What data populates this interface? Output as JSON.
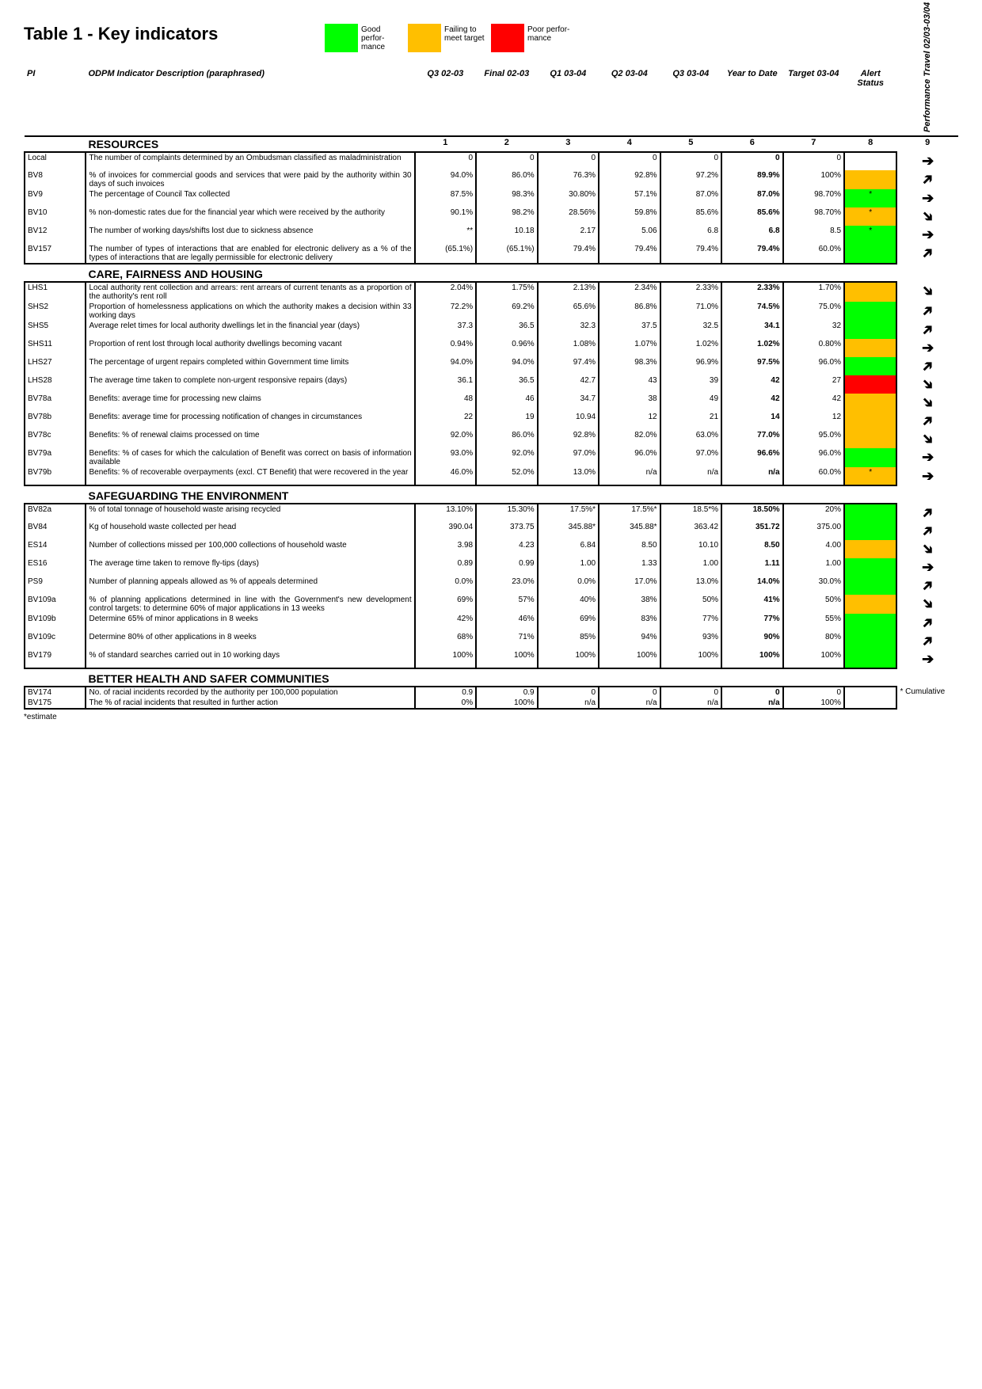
{
  "title": "Table 1 - Key indicators",
  "legend": [
    {
      "color": "#00ff00",
      "label": "Good perfor-mance"
    },
    {
      "color": "#ffbf00",
      "label": "Failing to meet target"
    },
    {
      "color": "#ff0000",
      "label": "Poor perfor-mance"
    }
  ],
  "colors": {
    "good": "#00ff00",
    "warn": "#ffbf00",
    "poor": "#ff0000"
  },
  "trend_glyph": "➔",
  "columns": {
    "pi": "PI",
    "desc": "ODPM Indicator Description (paraphrased)",
    "q3_0203": "Q3 02-03",
    "final_0203": "Final 02-03",
    "q1_0304": "Q1 03-04",
    "q2_0304": "Q2 03-04",
    "q3_0304": "Q3 03-04",
    "ytd": "Year to Date",
    "target": "Target 03-04",
    "alert": "Alert Status",
    "trend": "Performance Travel 02/03-03/04"
  },
  "nums": [
    "1",
    "2",
    "3",
    "4",
    "5",
    "6",
    "7",
    "8",
    "9"
  ],
  "cumulative_note": "* Cumulative",
  "estimate_note": "*estimate",
  "sections": [
    {
      "name": "RESOURCES",
      "rows": [
        {
          "pi": "Local",
          "desc": "The number of complaints determined by an Ombudsman classified as maladministration",
          "v": [
            "0",
            "0",
            "0",
            "0",
            "0",
            "0",
            "0"
          ],
          "alert": "",
          "trend": "r"
        },
        {
          "pi": "BV8",
          "desc": "% of invoices for commercial goods and services that were paid by the authority within 30 days of such invoices",
          "v": [
            "94.0%",
            "86.0%",
            "76.3%",
            "92.8%",
            "97.2%",
            "89.9%",
            "100%"
          ],
          "alert": "warn",
          "trend": "ur"
        },
        {
          "pi": "BV9",
          "desc": "The percentage of Council Tax collected",
          "v": [
            "87.5%",
            "98.3%",
            "30.80%",
            "57.1%",
            "87.0%",
            "87.0%",
            "98.70%"
          ],
          "alert": "good",
          "alert_star": true,
          "trend": "r"
        },
        {
          "pi": "BV10",
          "desc": "% non-domestic rates due for the financial year which were received by the authority",
          "v": [
            "90.1%",
            "98.2%",
            "28.56%",
            "59.8%",
            "85.6%",
            "85.6%",
            "98.70%"
          ],
          "alert": "warn",
          "alert_star": true,
          "trend": "dr"
        },
        {
          "pi": "BV12",
          "desc": "The number of working days/shifts lost due to sickness absence",
          "v": [
            "**",
            "10.18",
            "2.17",
            "5.06",
            "6.8",
            "6.8",
            "8.5"
          ],
          "alert": "good",
          "alert_star": true,
          "trend": "r"
        },
        {
          "pi": "BV157",
          "desc": "The number of types of interactions that are enabled for electronic delivery as a % of the types of interactions that are legally permissible for electronic delivery",
          "v": [
            "(65.1%)",
            "(65.1%)",
            "79.4%",
            "79.4%",
            "79.4%",
            "79.4%",
            "60.0%"
          ],
          "alert": "good",
          "trend": "ur"
        }
      ]
    },
    {
      "name": "CARE, FAIRNESS AND HOUSING",
      "rows": [
        {
          "pi": "LHS1",
          "desc": "Local authority rent collection and arrears: rent arrears of current tenants as a proportion of the authority's rent roll",
          "v": [
            "2.04%",
            "1.75%",
            "2.13%",
            "2.34%",
            "2.33%",
            "2.33%",
            "1.70%"
          ],
          "alert": "warn",
          "trend": "dr"
        },
        {
          "pi": "SHS2",
          "desc": "Proportion of homelessness applications on which the authority makes a decision within 33 working days",
          "v": [
            "72.2%",
            "69.2%",
            "65.6%",
            "86.8%",
            "71.0%",
            "74.5%",
            "75.0%"
          ],
          "alert": "good",
          "trend": "ur"
        },
        {
          "pi": "SHS5",
          "desc": "Average relet times for local authority dwellings let in the financial year (days)",
          "v": [
            "37.3",
            "36.5",
            "32.3",
            "37.5",
            "32.5",
            "34.1",
            "32"
          ],
          "alert": "good",
          "trend": "ur"
        },
        {
          "pi": "SHS11",
          "desc": "Proportion of rent lost through local authority dwellings becoming vacant",
          "v": [
            "0.94%",
            "0.96%",
            "1.08%",
            "1.07%",
            "1.02%",
            "1.02%",
            "0.80%"
          ],
          "alert": "warn",
          "trend": "r"
        },
        {
          "pi": "LHS27",
          "desc": "The percentage of urgent repairs completed within Government time limits",
          "v": [
            "94.0%",
            "94.0%",
            "97.4%",
            "98.3%",
            "96.9%",
            "97.5%",
            "96.0%"
          ],
          "alert": "good",
          "trend": "ur"
        },
        {
          "pi": "LHS28",
          "desc": "The average time taken to complete non-urgent responsive repairs (days)",
          "v": [
            "36.1",
            "36.5",
            "42.7",
            "43",
            "39",
            "42",
            "27"
          ],
          "alert": "poor",
          "trend": "dr"
        },
        {
          "pi": "BV78a",
          "desc": "Benefits: average time for processing new claims",
          "v": [
            "48",
            "46",
            "34.7",
            "38",
            "49",
            "42",
            "42"
          ],
          "alert": "warn",
          "trend": "dr"
        },
        {
          "pi": "BV78b",
          "desc": "Benefits: average time for processing notification of changes in circumstances",
          "v": [
            "22",
            "19",
            "10.94",
            "12",
            "21",
            "14",
            "12"
          ],
          "alert": "warn",
          "trend": "ur"
        },
        {
          "pi": "BV78c",
          "desc": "Benefits: % of renewal claims processed on time",
          "v": [
            "92.0%",
            "86.0%",
            "92.8%",
            "82.0%",
            "63.0%",
            "77.0%",
            "95.0%"
          ],
          "alert": "warn",
          "trend": "dr"
        },
        {
          "pi": "BV79a",
          "desc": "Benefits: % of cases for which the calculation of Benefit was correct on basis of information available",
          "v": [
            "93.0%",
            "92.0%",
            "97.0%",
            "96.0%",
            "97.0%",
            "96.6%",
            "96.0%"
          ],
          "alert": "good",
          "trend": "r"
        },
        {
          "pi": "BV79b",
          "desc": "Benefits: % of recoverable overpayments (excl. CT Benefit) that were recovered in the year",
          "v": [
            "46.0%",
            "52.0%",
            "13.0%",
            "n/a",
            "n/a",
            "n/a",
            "60.0%"
          ],
          "alert": "warn",
          "alert_star": true,
          "trend": "r"
        }
      ]
    },
    {
      "name": "SAFEGUARDING THE ENVIRONMENT",
      "rows": [
        {
          "pi": "BV82a",
          "desc": "% of total tonnage of household waste arising recycled",
          "v": [
            "13.10%",
            "15.30%",
            "17.5%*",
            "17.5%*",
            "18.5*%",
            "18.50%",
            "20%"
          ],
          "alert": "good",
          "trend": "ur"
        },
        {
          "pi": "BV84",
          "desc": "Kg of household waste collected per head",
          "v": [
            "390.04",
            "373.75",
            "345.88*",
            "345.88*",
            "363.42",
            "351.72",
            "375.00"
          ],
          "alert": "good",
          "trend": "ur"
        },
        {
          "pi": "ES14",
          "desc": "Number of collections missed per 100,000 collections of household waste",
          "v": [
            "3.98",
            "4.23",
            "6.84",
            "8.50",
            "10.10",
            "8.50",
            "4.00"
          ],
          "alert": "warn",
          "trend": "dr"
        },
        {
          "pi": "ES16",
          "desc": "The average time taken to remove fly-tips (days)",
          "v": [
            "0.89",
            "0.99",
            "1.00",
            "1.33",
            "1.00",
            "1.11",
            "1.00"
          ],
          "alert": "good",
          "trend": "r"
        },
        {
          "pi": "PS9",
          "desc": "Number of planning appeals allowed as % of appeals determined",
          "v": [
            "0.0%",
            "23.0%",
            "0.0%",
            "17.0%",
            "13.0%",
            "14.0%",
            "30.0%"
          ],
          "alert": "good",
          "trend": "ur"
        },
        {
          "pi": "BV109a",
          "desc": "% of planning applications determined in line with the Government's new development control targets: to determine 60% of major applications in 13 weeks",
          "v": [
            "69%",
            "57%",
            "40%",
            "38%",
            "50%",
            "41%",
            "50%"
          ],
          "alert": "warn",
          "trend": "dr"
        },
        {
          "pi": "BV109b",
          "desc": "Determine 65% of minor applications in 8 weeks",
          "v": [
            "42%",
            "46%",
            "69%",
            "83%",
            "77%",
            "77%",
            "55%"
          ],
          "alert": "good",
          "trend": "ur"
        },
        {
          "pi": "BV109c",
          "desc": "Determine 80% of other applications in 8 weeks",
          "v": [
            "68%",
            "71%",
            "85%",
            "94%",
            "93%",
            "90%",
            "80%"
          ],
          "alert": "good",
          "trend": "ur"
        },
        {
          "pi": "BV179",
          "desc": "% of standard searches carried out in 10 working days",
          "v": [
            "100%",
            "100%",
            "100%",
            "100%",
            "100%",
            "100%",
            "100%"
          ],
          "alert": "good",
          "trend": "r"
        }
      ]
    },
    {
      "name": "BETTER HEALTH AND SAFER COMMUNITIES",
      "rows": [
        {
          "pi": "BV174",
          "desc": "No. of racial incidents recorded by the authority per 100,000 population",
          "v": [
            "0.9",
            "0.9",
            "0",
            "0",
            "0",
            "0",
            "0"
          ],
          "alert": "",
          "trend": "",
          "trend_text": "* Cumulative"
        },
        {
          "pi": "BV175",
          "desc": "The % of racial incidents that resulted in further action",
          "v": [
            "0%",
            "100%",
            "n/a",
            "n/a",
            "n/a",
            "n/a",
            "100%"
          ],
          "alert": "",
          "trend": ""
        }
      ]
    }
  ]
}
